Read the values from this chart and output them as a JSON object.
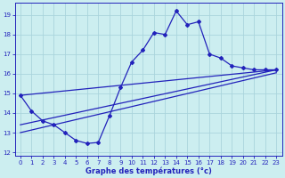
{
  "xlabel": "Graphe des températures (°c)",
  "background_color": "#cceef0",
  "line_color": "#2222bb",
  "grid_color": "#aad4dc",
  "xlim": [
    -0.5,
    23.5
  ],
  "ylim": [
    11.8,
    19.6
  ],
  "xticks": [
    0,
    1,
    2,
    3,
    4,
    5,
    6,
    7,
    8,
    9,
    10,
    11,
    12,
    13,
    14,
    15,
    16,
    17,
    18,
    19,
    20,
    21,
    22,
    23
  ],
  "yticks": [
    12,
    13,
    14,
    15,
    16,
    17,
    18,
    19
  ],
  "curve1_x": [
    0,
    1,
    2,
    3,
    4,
    5,
    6,
    7,
    8,
    9,
    10,
    11,
    12,
    13,
    14,
    15,
    16,
    17,
    18,
    19,
    20,
    21,
    22,
    23
  ],
  "curve1_y": [
    14.9,
    14.1,
    13.6,
    13.4,
    13.0,
    12.6,
    12.45,
    12.5,
    13.85,
    15.3,
    16.6,
    17.2,
    18.1,
    18.0,
    19.2,
    18.5,
    18.65,
    17.0,
    16.8,
    16.4,
    16.3,
    16.2,
    16.2,
    16.2
  ],
  "line2_x": [
    0,
    23
  ],
  "line2_y": [
    14.9,
    16.2
  ],
  "line3_x": [
    0,
    23
  ],
  "line3_y": [
    13.4,
    16.2
  ],
  "line4_x": [
    0,
    23
  ],
  "line4_y": [
    13.0,
    16.05
  ]
}
